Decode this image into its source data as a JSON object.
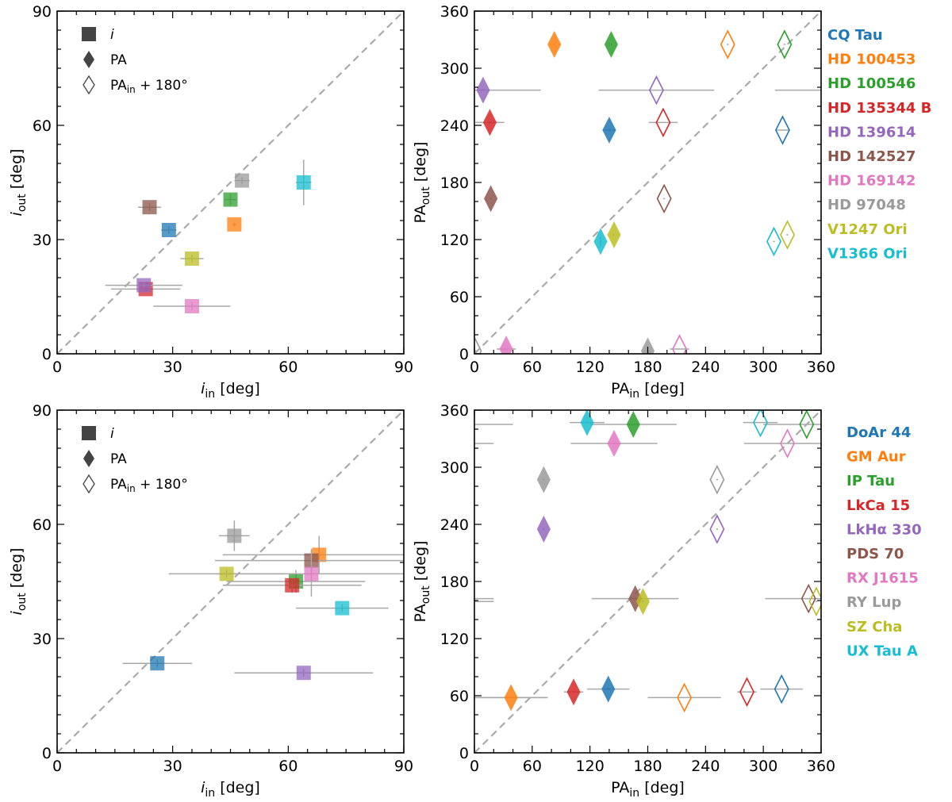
{
  "colors": {
    "blue": "#1f77b4",
    "orange": "#ff7f0e",
    "green": "#2ca02c",
    "red": "#d62728",
    "purple": "#9467bd",
    "brown": "#8c564b",
    "pink": "#e377c2",
    "gray": "#9a9a9a",
    "olive": "#bcbd22",
    "cyan": "#17becf",
    "errorbar": "#a8a8a8",
    "diagonal": "#aaaaaa",
    "legend_marker": "#444444"
  },
  "legend_markers": {
    "square_symbol": "i",
    "filled_diamond_label": "PA",
    "open_diamond_label": "PA_in + 180°",
    "open_diamond_display": "PAin + 180°"
  },
  "object_lists": {
    "top": [
      {
        "name": "CQ Tau",
        "color": "#1f77b4"
      },
      {
        "name": "HD 100453",
        "color": "#ff7f0e"
      },
      {
        "name": "HD 100546",
        "color": "#2ca02c"
      },
      {
        "name": "HD 135344 B",
        "color": "#d62728"
      },
      {
        "name": "HD 139614",
        "color": "#9467bd"
      },
      {
        "name": "HD 142527",
        "color": "#8c564b"
      },
      {
        "name": "HD 169142",
        "color": "#e377c2"
      },
      {
        "name": "HD 97048",
        "color": "#9a9a9a"
      },
      {
        "name": "V1247 Ori",
        "color": "#bcbd22"
      },
      {
        "name": "V1366 Ori",
        "color": "#17becf"
      }
    ],
    "bottom": [
      {
        "name": "DoAr 44",
        "color": "#1f77b4"
      },
      {
        "name": "GM Aur",
        "color": "#ff7f0e"
      },
      {
        "name": "IP Tau",
        "color": "#2ca02c"
      },
      {
        "name": "LkCa 15",
        "color": "#d62728"
      },
      {
        "name": "LkHα 330",
        "color": "#9467bd"
      },
      {
        "name": "PDS 70",
        "color": "#8c564b"
      },
      {
        "name": "RX J1615",
        "color": "#e377c2"
      },
      {
        "name": "RY Lup",
        "color": "#9a9a9a"
      },
      {
        "name": "SZ Cha",
        "color": "#bcbd22"
      },
      {
        "name": "UX Tau A",
        "color": "#17becf"
      }
    ]
  },
  "chart_data": [
    {
      "id": "top-left",
      "type": "scatter",
      "xlabel": "i_in [deg]",
      "ylabel": "i_out [deg]",
      "xlim": [
        0,
        90
      ],
      "ylim": [
        0,
        90
      ],
      "xticks": [
        0,
        30,
        60,
        90
      ],
      "yticks": [
        0,
        30,
        60,
        90
      ],
      "diagonal": true,
      "legend": [
        "i",
        "PA",
        "PA_in + 180°"
      ],
      "legend_position": "top-left",
      "points": [
        {
          "name": "CQ Tau",
          "color": "#1f77b4",
          "x": 29,
          "y": 32.5,
          "xerr": 2,
          "yerr": 1
        },
        {
          "name": "HD 100453",
          "color": "#ff7f0e",
          "x": 46,
          "y": 34,
          "xerr": 0.5,
          "yerr": 0.5
        },
        {
          "name": "HD 100546",
          "color": "#2ca02c",
          "x": 45,
          "y": 40.5,
          "xerr": 1.5,
          "yerr": 1.5
        },
        {
          "name": "HD 135344 B",
          "color": "#d62728",
          "x": 23,
          "y": 17,
          "xerr": 9,
          "yerr": 0.5
        },
        {
          "name": "HD 139614",
          "color": "#9467bd",
          "x": 22.5,
          "y": 18,
          "xerr": 10,
          "yerr": 0.5
        },
        {
          "name": "HD 142527",
          "color": "#8c564b",
          "x": 24,
          "y": 38.5,
          "xerr": 3,
          "yerr": 1
        },
        {
          "name": "HD 169142",
          "color": "#e377c2",
          "x": 35,
          "y": 12.5,
          "xerr": 10,
          "yerr": 1
        },
        {
          "name": "HD 97048",
          "color": "#9a9a9a",
          "x": 48,
          "y": 45.5,
          "xerr": 2,
          "yerr": 1
        },
        {
          "name": "V1247 Ori",
          "color": "#bcbd22",
          "x": 35,
          "y": 25,
          "xerr": 3,
          "yerr": 1
        },
        {
          "name": "V1366 Ori",
          "color": "#17becf",
          "x": 64,
          "y": 45,
          "xerr": 2,
          "yerr": 6
        }
      ]
    },
    {
      "id": "top-right",
      "type": "scatter",
      "xlabel": "PA_in [deg]",
      "ylabel": "PA_out [deg]",
      "xlim": [
        0,
        360
      ],
      "ylim": [
        0,
        360
      ],
      "xticks": [
        0,
        60,
        120,
        180,
        240,
        300,
        360
      ],
      "yticks": [
        0,
        60,
        120,
        180,
        240,
        300,
        360
      ],
      "diagonal": true,
      "points": [
        {
          "name": "CQ Tau",
          "color": "#1f77b4",
          "x": 140,
          "y": 235,
          "xerr": 7,
          "yerr": 2,
          "flip_x": 320
        },
        {
          "name": "HD 100453",
          "color": "#ff7f0e",
          "x": 83,
          "y": 325,
          "xerr": 1,
          "yerr": 1,
          "flip_x": 263
        },
        {
          "name": "HD 100546",
          "color": "#2ca02c",
          "x": 142,
          "y": 325,
          "xerr": 1,
          "yerr": 1,
          "flip_x": 322
        },
        {
          "name": "HD 135344 B",
          "color": "#d62728",
          "x": 16,
          "y": 243,
          "xerr": 15,
          "yerr": 1,
          "flip_x": 196
        },
        {
          "name": "HD 139614",
          "color": "#9467bd",
          "x": 9,
          "y": 277,
          "xerr": 60,
          "yerr": 1,
          "flip_x": 189
        },
        {
          "name": "HD 142527",
          "color": "#8c564b",
          "x": 17,
          "y": 163,
          "xerr": 1,
          "yerr": 1,
          "flip_x": 197
        },
        {
          "name": "HD 169142",
          "color": "#e377c2",
          "x": 33,
          "y": 5,
          "xerr": 10,
          "yerr": 1,
          "flip_x": 213
        },
        {
          "name": "HD 97048",
          "color": "#9a9a9a",
          "x": 180,
          "y": 3,
          "xerr": 3,
          "yerr": 1,
          "flip_x": 0
        },
        {
          "name": "V1247 Ori",
          "color": "#bcbd22",
          "x": 145,
          "y": 125,
          "xerr": 1,
          "yerr": 1,
          "flip_x": 325
        },
        {
          "name": "V1366 Ori",
          "color": "#17becf",
          "x": 131,
          "y": 118,
          "xerr": 1,
          "yerr": 5,
          "flip_x": 311
        }
      ],
      "extra_errorbars": [
        {
          "y": 277,
          "x0": 312,
          "x1": 360
        }
      ]
    },
    {
      "id": "bottom-left",
      "type": "scatter",
      "xlabel": "i_in [deg]",
      "ylabel": "i_out [deg]",
      "xlim": [
        0,
        90
      ],
      "ylim": [
        0,
        90
      ],
      "xticks": [
        0,
        30,
        60,
        90
      ],
      "yticks": [
        0,
        30,
        60,
        90
      ],
      "diagonal": true,
      "legend": [
        "i",
        "PA",
        "PA_in + 180°"
      ],
      "legend_position": "top-left",
      "points": [
        {
          "name": "DoAr 44",
          "color": "#1f77b4",
          "x": 26,
          "y": 23.5,
          "xerr": 9,
          "yerr": 1
        },
        {
          "name": "GM Aur",
          "color": "#ff7f0e",
          "x": 68,
          "y": 52,
          "xerr": 25,
          "yerr": 5
        },
        {
          "name": "IP Tau",
          "color": "#2ca02c",
          "x": 62,
          "y": 45,
          "xerr": 18,
          "yerr": 3
        },
        {
          "name": "LkCa 15",
          "color": "#d62728",
          "x": 61,
          "y": 44,
          "xerr": 18,
          "yerr": 2
        },
        {
          "name": "LkHα 330",
          "color": "#9467bd",
          "x": 64,
          "y": 21,
          "xerr": 18,
          "yerr": 1
        },
        {
          "name": "PDS 70",
          "color": "#8c564b",
          "x": 66,
          "y": 50.5,
          "xerr": 25,
          "yerr": 3
        },
        {
          "name": "RX J1615",
          "color": "#e377c2",
          "x": 66,
          "y": 47,
          "xerr": 25,
          "yerr": 6
        },
        {
          "name": "RY Lup",
          "color": "#9a9a9a",
          "x": 46,
          "y": 57,
          "xerr": 4,
          "yerr": 4
        },
        {
          "name": "SZ Cha",
          "color": "#bcbd22",
          "x": 44,
          "y": 47,
          "xerr": 15,
          "yerr": 1
        },
        {
          "name": "UX Tau A",
          "color": "#17becf",
          "x": 74,
          "y": 38,
          "xerr": 12,
          "yerr": 1
        }
      ]
    },
    {
      "id": "bottom-right",
      "type": "scatter",
      "xlabel": "PA_in [deg]",
      "ylabel": "PA_out [deg]",
      "xlim": [
        0,
        360
      ],
      "ylim": [
        0,
        360
      ],
      "xticks": [
        0,
        60,
        120,
        180,
        240,
        300,
        360
      ],
      "yticks": [
        0,
        60,
        120,
        180,
        240,
        300,
        360
      ],
      "diagonal": true,
      "points": [
        {
          "name": "DoAr 44",
          "color": "#1f77b4",
          "x": 139,
          "y": 67,
          "xerr": 22,
          "yerr": 1,
          "flip_x": 319
        },
        {
          "name": "GM Aur",
          "color": "#ff7f0e",
          "x": 38,
          "y": 58,
          "xerr": 38,
          "yerr": 1,
          "flip_x": 218
        },
        {
          "name": "IP Tau",
          "color": "#2ca02c",
          "x": 165,
          "y": 345,
          "xerr": 45,
          "yerr": 1,
          "flip_x": 345
        },
        {
          "name": "LkCa 15",
          "color": "#d62728",
          "x": 103,
          "y": 64,
          "xerr": 10,
          "yerr": 1,
          "flip_x": 283
        },
        {
          "name": "LkHα 330",
          "color": "#9467bd",
          "x": 72,
          "y": 235,
          "xerr": 1,
          "yerr": 1,
          "flip_x": 252
        },
        {
          "name": "PDS 70",
          "color": "#8c564b",
          "x": 167,
          "y": 162,
          "xerr": 45,
          "yerr": 1,
          "flip_x": 347
        },
        {
          "name": "RX J1615",
          "color": "#e377c2",
          "x": 145,
          "y": 325,
          "xerr": 45,
          "yerr": 1,
          "flip_x": 325
        },
        {
          "name": "RY Lup",
          "color": "#9a9a9a",
          "x": 72,
          "y": 287,
          "xerr": 1,
          "yerr": 1,
          "flip_x": 252
        },
        {
          "name": "SZ Cha",
          "color": "#bcbd22",
          "x": 175,
          "y": 159,
          "xerr": 1,
          "yerr": 1,
          "flip_x": 355
        },
        {
          "name": "UX Tau A",
          "color": "#17becf",
          "x": 117,
          "y": 347,
          "xerr": 18,
          "yerr": 1,
          "flip_x": 297
        }
      ],
      "extra_errorbars": [
        {
          "y": 345,
          "x0": 0,
          "x1": 40
        },
        {
          "y": 325,
          "x0": 0,
          "x1": 20
        },
        {
          "y": 162,
          "x0": 0,
          "x1": 20
        },
        {
          "y": 159,
          "x0": 0,
          "x1": 20
        },
        {
          "y": 58,
          "x0": 0,
          "x1": 76
        }
      ]
    }
  ]
}
